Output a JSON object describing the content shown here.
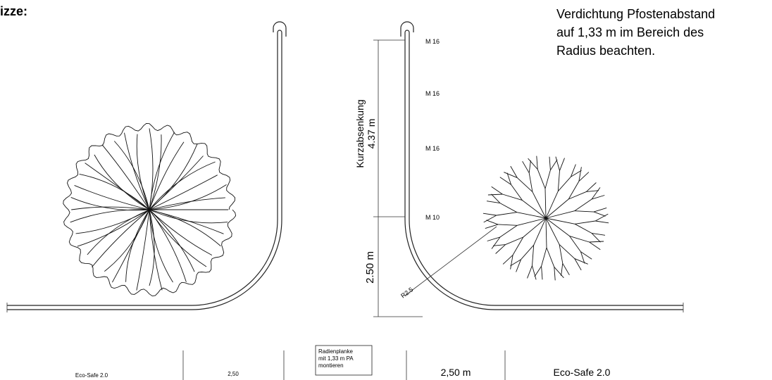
{
  "header": {
    "title": "izze:"
  },
  "note": {
    "lines": [
      "Verdichtung Pfostenabstand",
      "auf 1,33 m im Bereich des",
      "Radius beachten."
    ]
  },
  "right_drawing": {
    "post_labels": [
      "M 16",
      "M 16",
      "M 16",
      "M 10"
    ],
    "dimension_upper": {
      "label": "Kurzabsenkung",
      "value": "4.37 m"
    },
    "dimension_lower": {
      "value": "2.50 m"
    },
    "radius_label": "R2.5"
  },
  "footer": {
    "cells": [
      "Eco-Safe 2.0",
      "2,50",
      "2,50 m",
      "Eco-Safe 2.0"
    ],
    "box": {
      "lines": [
        "Radienplanke",
        "mit 1,33 m PA",
        "montieren"
      ]
    }
  }
}
